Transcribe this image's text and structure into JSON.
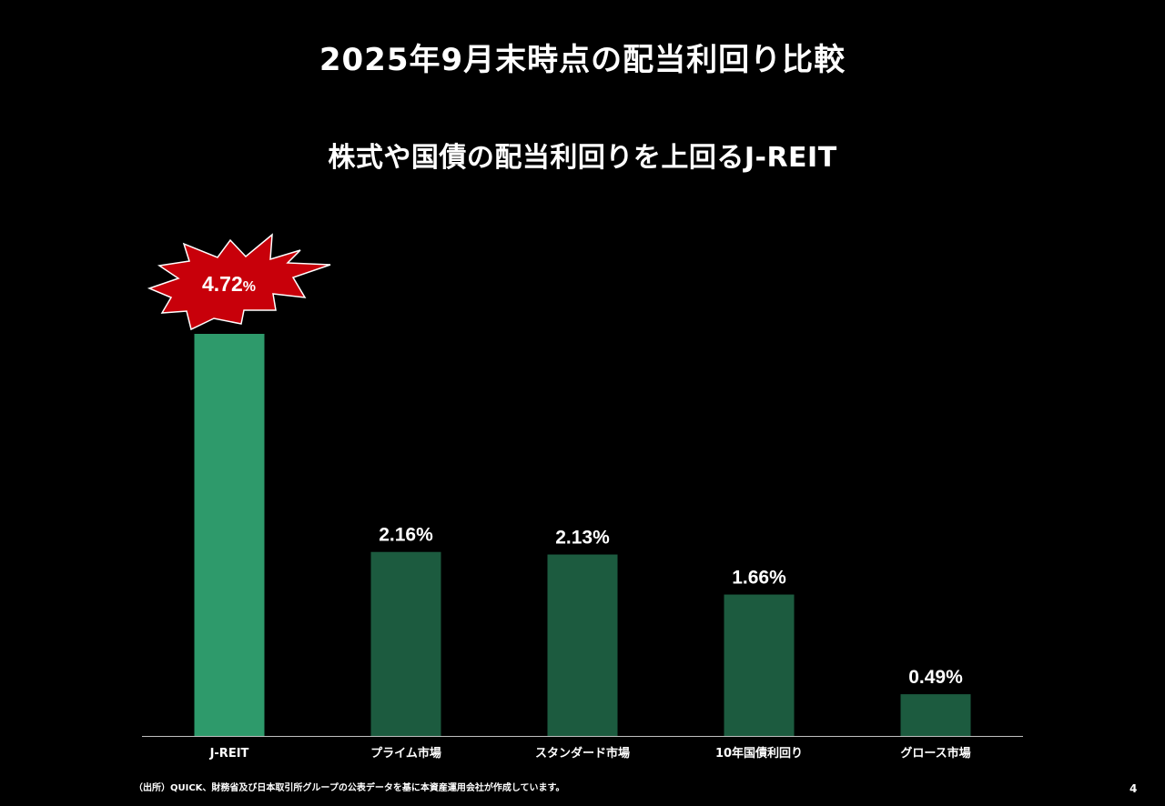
{
  "title": "2025年9月末時点の配当利回り比較",
  "subtitle": "株式や国債の配当利回りを上回るJ-REIT",
  "footnote": "（出所）QUICK、財務省及び日本取引所グループの公表データを基に本資産運用会社が作成しています。",
  "page_number": "4",
  "colors": {
    "highlight_bar": "#2e9a6b",
    "bar": "#1c5b3f",
    "burst_fill": "#c8000a",
    "burst_stroke": "#ffffff",
    "axis_line": "#bfbfbf"
  },
  "chart_data": {
    "type": "bar",
    "title": "2025年9月末時点の配当利回り比較",
    "subtitle": "株式や国債の配当利回りを上回るJ-REIT",
    "categories": [
      "J-REIT",
      "プライム市場",
      "スタンダード市場",
      "10年国債利回り",
      "グロース市場"
    ],
    "values": [
      4.72,
      2.16,
      2.13,
      1.66,
      0.49
    ],
    "value_labels": [
      "4.72%",
      "2.16%",
      "2.13%",
      "1.66%",
      "0.49%"
    ],
    "highlight": {
      "category": "J-REIT",
      "number": "4.72",
      "unit": "%"
    },
    "unit": "%",
    "ylim": [
      0,
      4.72
    ],
    "grid": false,
    "legend": "none"
  }
}
